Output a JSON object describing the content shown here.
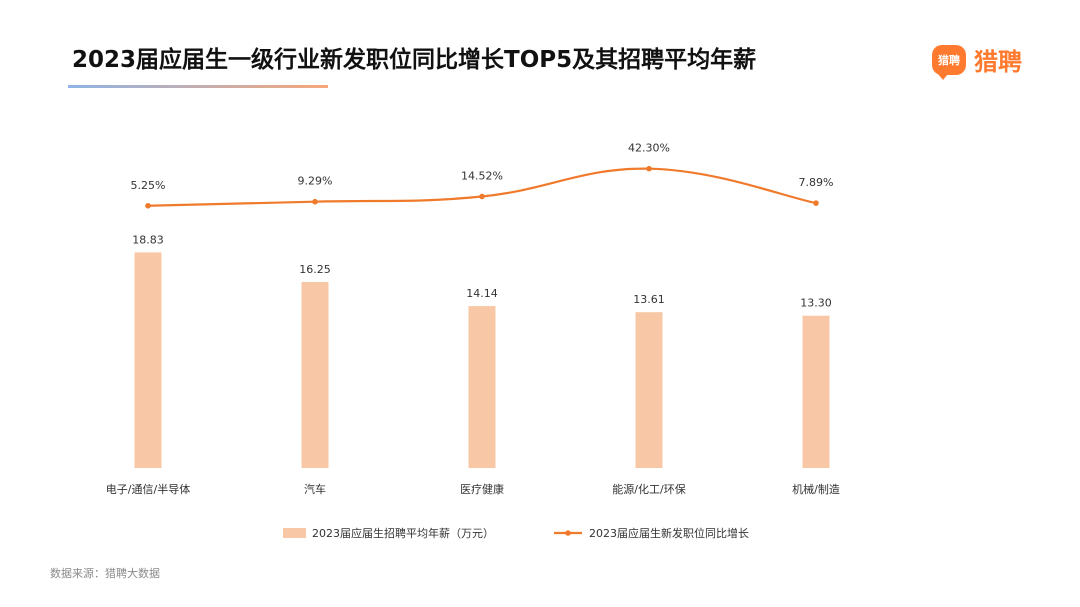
{
  "header": {
    "title": "2023届应届生一级行业新发职位同比增长TOP5及其招聘平均年薪"
  },
  "logo": {
    "badge_text": "猎聘",
    "text": "猎聘"
  },
  "footer": {
    "source": "数据来源：猎聘大数据"
  },
  "colors": {
    "bar": "#f8c8a6",
    "line": "#f07a2c",
    "accent": "#ff7a2f"
  },
  "chart_data": {
    "type": "bar",
    "categories": [
      "电子/通信/半导体",
      "汽车",
      "医疗健康",
      "能源/化工/环保",
      "机械/制造"
    ],
    "series": [
      {
        "name": "2023届应届生招聘平均年薪（万元）",
        "type": "bar",
        "values": [
          18.83,
          16.25,
          14.14,
          13.61,
          13.3
        ],
        "labels": [
          "18.83",
          "16.25",
          "14.14",
          "13.61",
          "13.30"
        ]
      },
      {
        "name": "2023届应届生新发职位同比增长",
        "type": "line",
        "values": [
          5.25,
          9.29,
          14.52,
          42.3,
          7.89
        ],
        "labels": [
          "5.25%",
          "9.29%",
          "14.52%",
          "42.30%",
          "7.89%"
        ]
      }
    ],
    "legend_position": "bottom",
    "grid": false
  }
}
